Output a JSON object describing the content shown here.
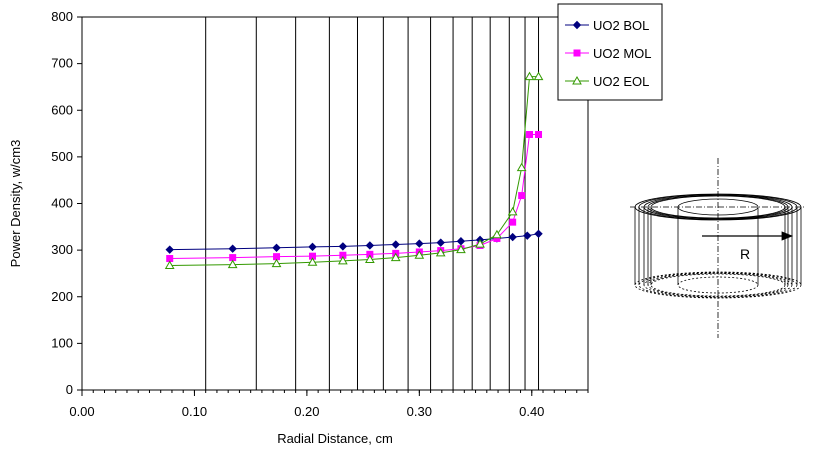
{
  "chart_data": {
    "type": "line",
    "title": "",
    "xlabel": "Radial Distance, cm",
    "ylabel": "Power Density, w/cm3",
    "xlim": [
      0,
      0.45
    ],
    "ylim": [
      0,
      800
    ],
    "x_ticks": [
      "0.00",
      "0.10",
      "0.20",
      "0.30",
      "0.40"
    ],
    "y_ticks": [
      "0",
      "100",
      "200",
      "300",
      "400",
      "500",
      "600",
      "700",
      "800"
    ],
    "x_gridlines": [
      0.11,
      0.155,
      0.19,
      0.22,
      0.245,
      0.268,
      0.29,
      0.31,
      0.33,
      0.347,
      0.363,
      0.38,
      0.394,
      0.406
    ],
    "grid": true,
    "legend_position": "top-right",
    "series": [
      {
        "name": "UO2 BOL",
        "color": "#00007f",
        "marker": "diamond",
        "x": [
          0.078,
          0.134,
          0.173,
          0.205,
          0.232,
          0.256,
          0.279,
          0.3,
          0.319,
          0.337,
          0.354,
          0.369,
          0.383,
          0.396,
          0.406
        ],
        "y": [
          301,
          303,
          305,
          307,
          308,
          310,
          312,
          314,
          316,
          319,
          322,
          325,
          328,
          331,
          335
        ]
      },
      {
        "name": "UO2 MOL",
        "color": "#ff00ff",
        "marker": "square",
        "x": [
          0.078,
          0.134,
          0.173,
          0.205,
          0.232,
          0.256,
          0.279,
          0.3,
          0.319,
          0.337,
          0.354,
          0.369,
          0.383,
          0.391,
          0.398,
          0.406
        ],
        "y": [
          282,
          284,
          286,
          287,
          289,
          291,
          293,
          296,
          299,
          303,
          310,
          325,
          360,
          417,
          548,
          548
        ]
      },
      {
        "name": "UO2 EOL",
        "color": "#339900",
        "marker": "triangle",
        "x": [
          0.078,
          0.134,
          0.173,
          0.205,
          0.232,
          0.256,
          0.279,
          0.3,
          0.319,
          0.337,
          0.354,
          0.369,
          0.383,
          0.391,
          0.398,
          0.406
        ],
        "y": [
          267,
          269,
          271,
          274,
          277,
          280,
          284,
          289,
          294,
          301,
          313,
          333,
          382,
          477,
          672,
          672
        ]
      }
    ]
  },
  "diagram": {
    "label": "R"
  }
}
